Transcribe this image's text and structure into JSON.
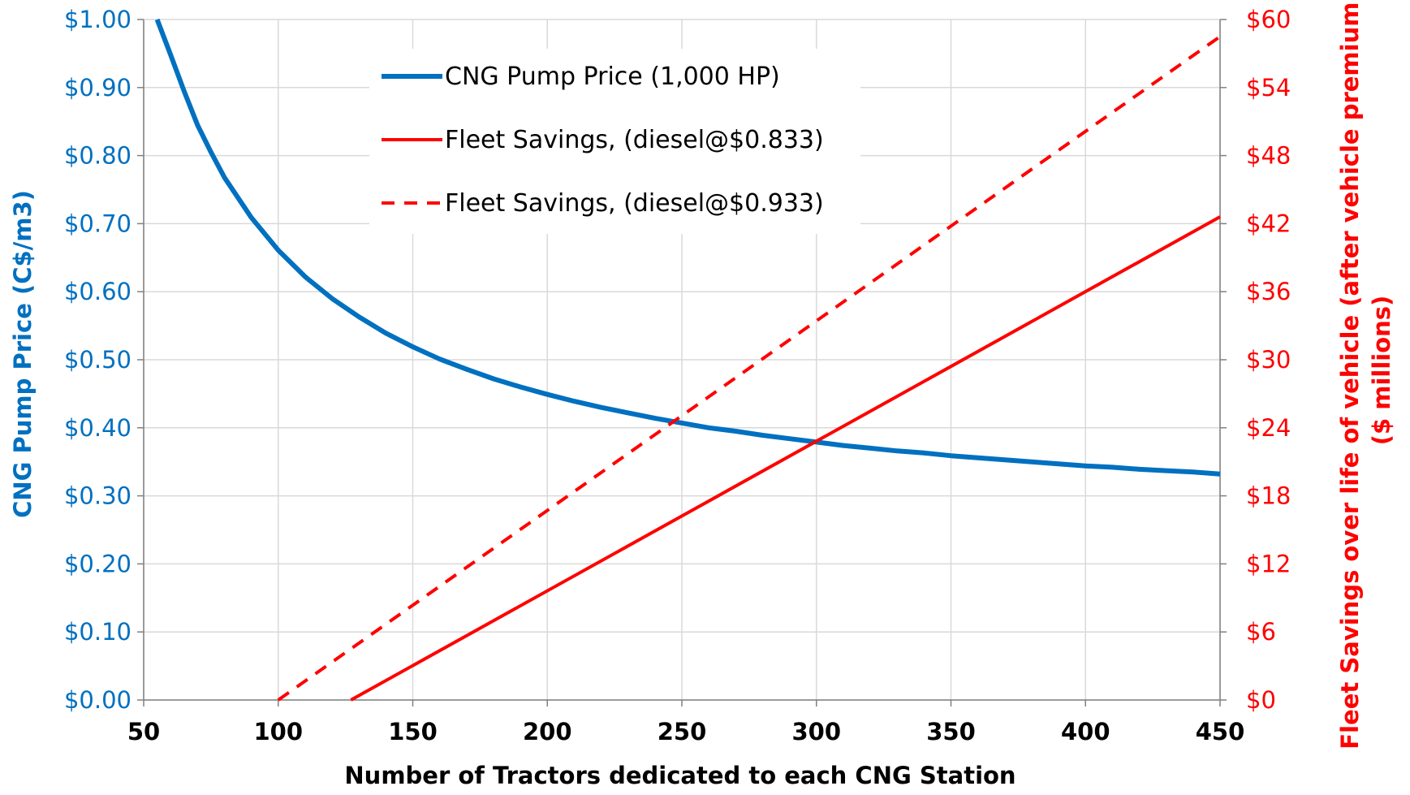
{
  "chart_data": {
    "type": "line",
    "title": "",
    "xlabel": "Number of Tractors dedicated to each CNG Station",
    "ylabel_left": "CNG Pump Price (C$/m3)",
    "ylabel_right_line1": "Fleet Savings over life of vehicle (after vehicle premium)",
    "ylabel_right_line2": "($ millions)",
    "xlim": [
      50,
      450
    ],
    "ylim_left": [
      0,
      1.0
    ],
    "ylim_right": [
      0,
      60
    ],
    "x_ticks": [
      50,
      100,
      150,
      200,
      250,
      300,
      350,
      400,
      450
    ],
    "x_tick_labels": [
      "50",
      "100",
      "150",
      "200",
      "250",
      "300",
      "350",
      "400",
      "450"
    ],
    "y_left_ticks": [
      0,
      0.1,
      0.2,
      0.3,
      0.4,
      0.5,
      0.6,
      0.7,
      0.8,
      0.9,
      1.0
    ],
    "y_left_tick_labels": [
      "$0.00",
      "$0.10",
      "$0.20",
      "$0.30",
      "$0.40",
      "$0.50",
      "$0.60",
      "$0.70",
      "$0.80",
      "$0.90",
      "$1.00"
    ],
    "y_right_ticks": [
      0,
      6,
      12,
      18,
      24,
      30,
      36,
      42,
      48,
      54,
      60
    ],
    "y_right_tick_labels": [
      "$0",
      "$6",
      "$12",
      "$18",
      "$24",
      "$30",
      "$36",
      "$42",
      "$48",
      "$54",
      "$60"
    ],
    "grid": true,
    "legend_position": "top-center",
    "series": [
      {
        "name": "CNG Pump Price (1,000 HP)",
        "axis": "left",
        "color": "#0070C0",
        "style": "solid",
        "x": [
          55,
          60,
          65,
          70,
          75,
          80,
          90,
          100,
          110,
          120,
          130,
          140,
          150,
          160,
          170,
          180,
          190,
          200,
          210,
          220,
          230,
          240,
          250,
          260,
          270,
          280,
          290,
          300,
          310,
          320,
          330,
          340,
          350,
          360,
          370,
          380,
          390,
          400,
          410,
          420,
          430,
          440,
          450
        ],
        "y": [
          1.0,
          0.948,
          0.895,
          0.845,
          0.805,
          0.768,
          0.709,
          0.661,
          0.622,
          0.59,
          0.563,
          0.539,
          0.519,
          0.501,
          0.486,
          0.472,
          0.46,
          0.449,
          0.439,
          0.43,
          0.422,
          0.414,
          0.407,
          0.4,
          0.395,
          0.389,
          0.384,
          0.379,
          0.374,
          0.37,
          0.366,
          0.363,
          0.359,
          0.356,
          0.353,
          0.35,
          0.347,
          0.344,
          0.342,
          0.339,
          0.337,
          0.335,
          0.332
        ]
      },
      {
        "name": "Fleet Savings, (diesel@$0.833)",
        "axis": "right",
        "color": "#FF0000",
        "style": "solid",
        "x": [
          127,
          450
        ],
        "y": [
          0,
          42.6
        ]
      },
      {
        "name": "Fleet Savings, (diesel@$0.933)",
        "axis": "right",
        "color": "#FF0000",
        "style": "dashed",
        "x": [
          100,
          450
        ],
        "y": [
          0,
          58.5
        ]
      }
    ],
    "colors": {
      "left_axis": "#0070C0",
      "right_axis": "#FF0000",
      "x_axis": "#000000",
      "grid": "#D9D9D9"
    }
  }
}
